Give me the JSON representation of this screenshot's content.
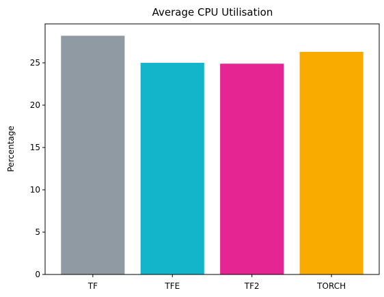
{
  "chart_data": {
    "type": "bar",
    "title": "Average CPU Utilisation",
    "xlabel": "",
    "ylabel": "Percentage",
    "categories": [
      "TF",
      "TFE",
      "TF2",
      "TORCH"
    ],
    "values": [
      28.2,
      25.0,
      24.9,
      26.3
    ],
    "colors": [
      "#8f9aa2",
      "#13b5cb",
      "#e52592",
      "#f9ab00"
    ],
    "ylim": [
      0,
      29.6
    ],
    "yticks": [
      0,
      5,
      10,
      15,
      20,
      25
    ],
    "grid": false,
    "legend": "none"
  }
}
